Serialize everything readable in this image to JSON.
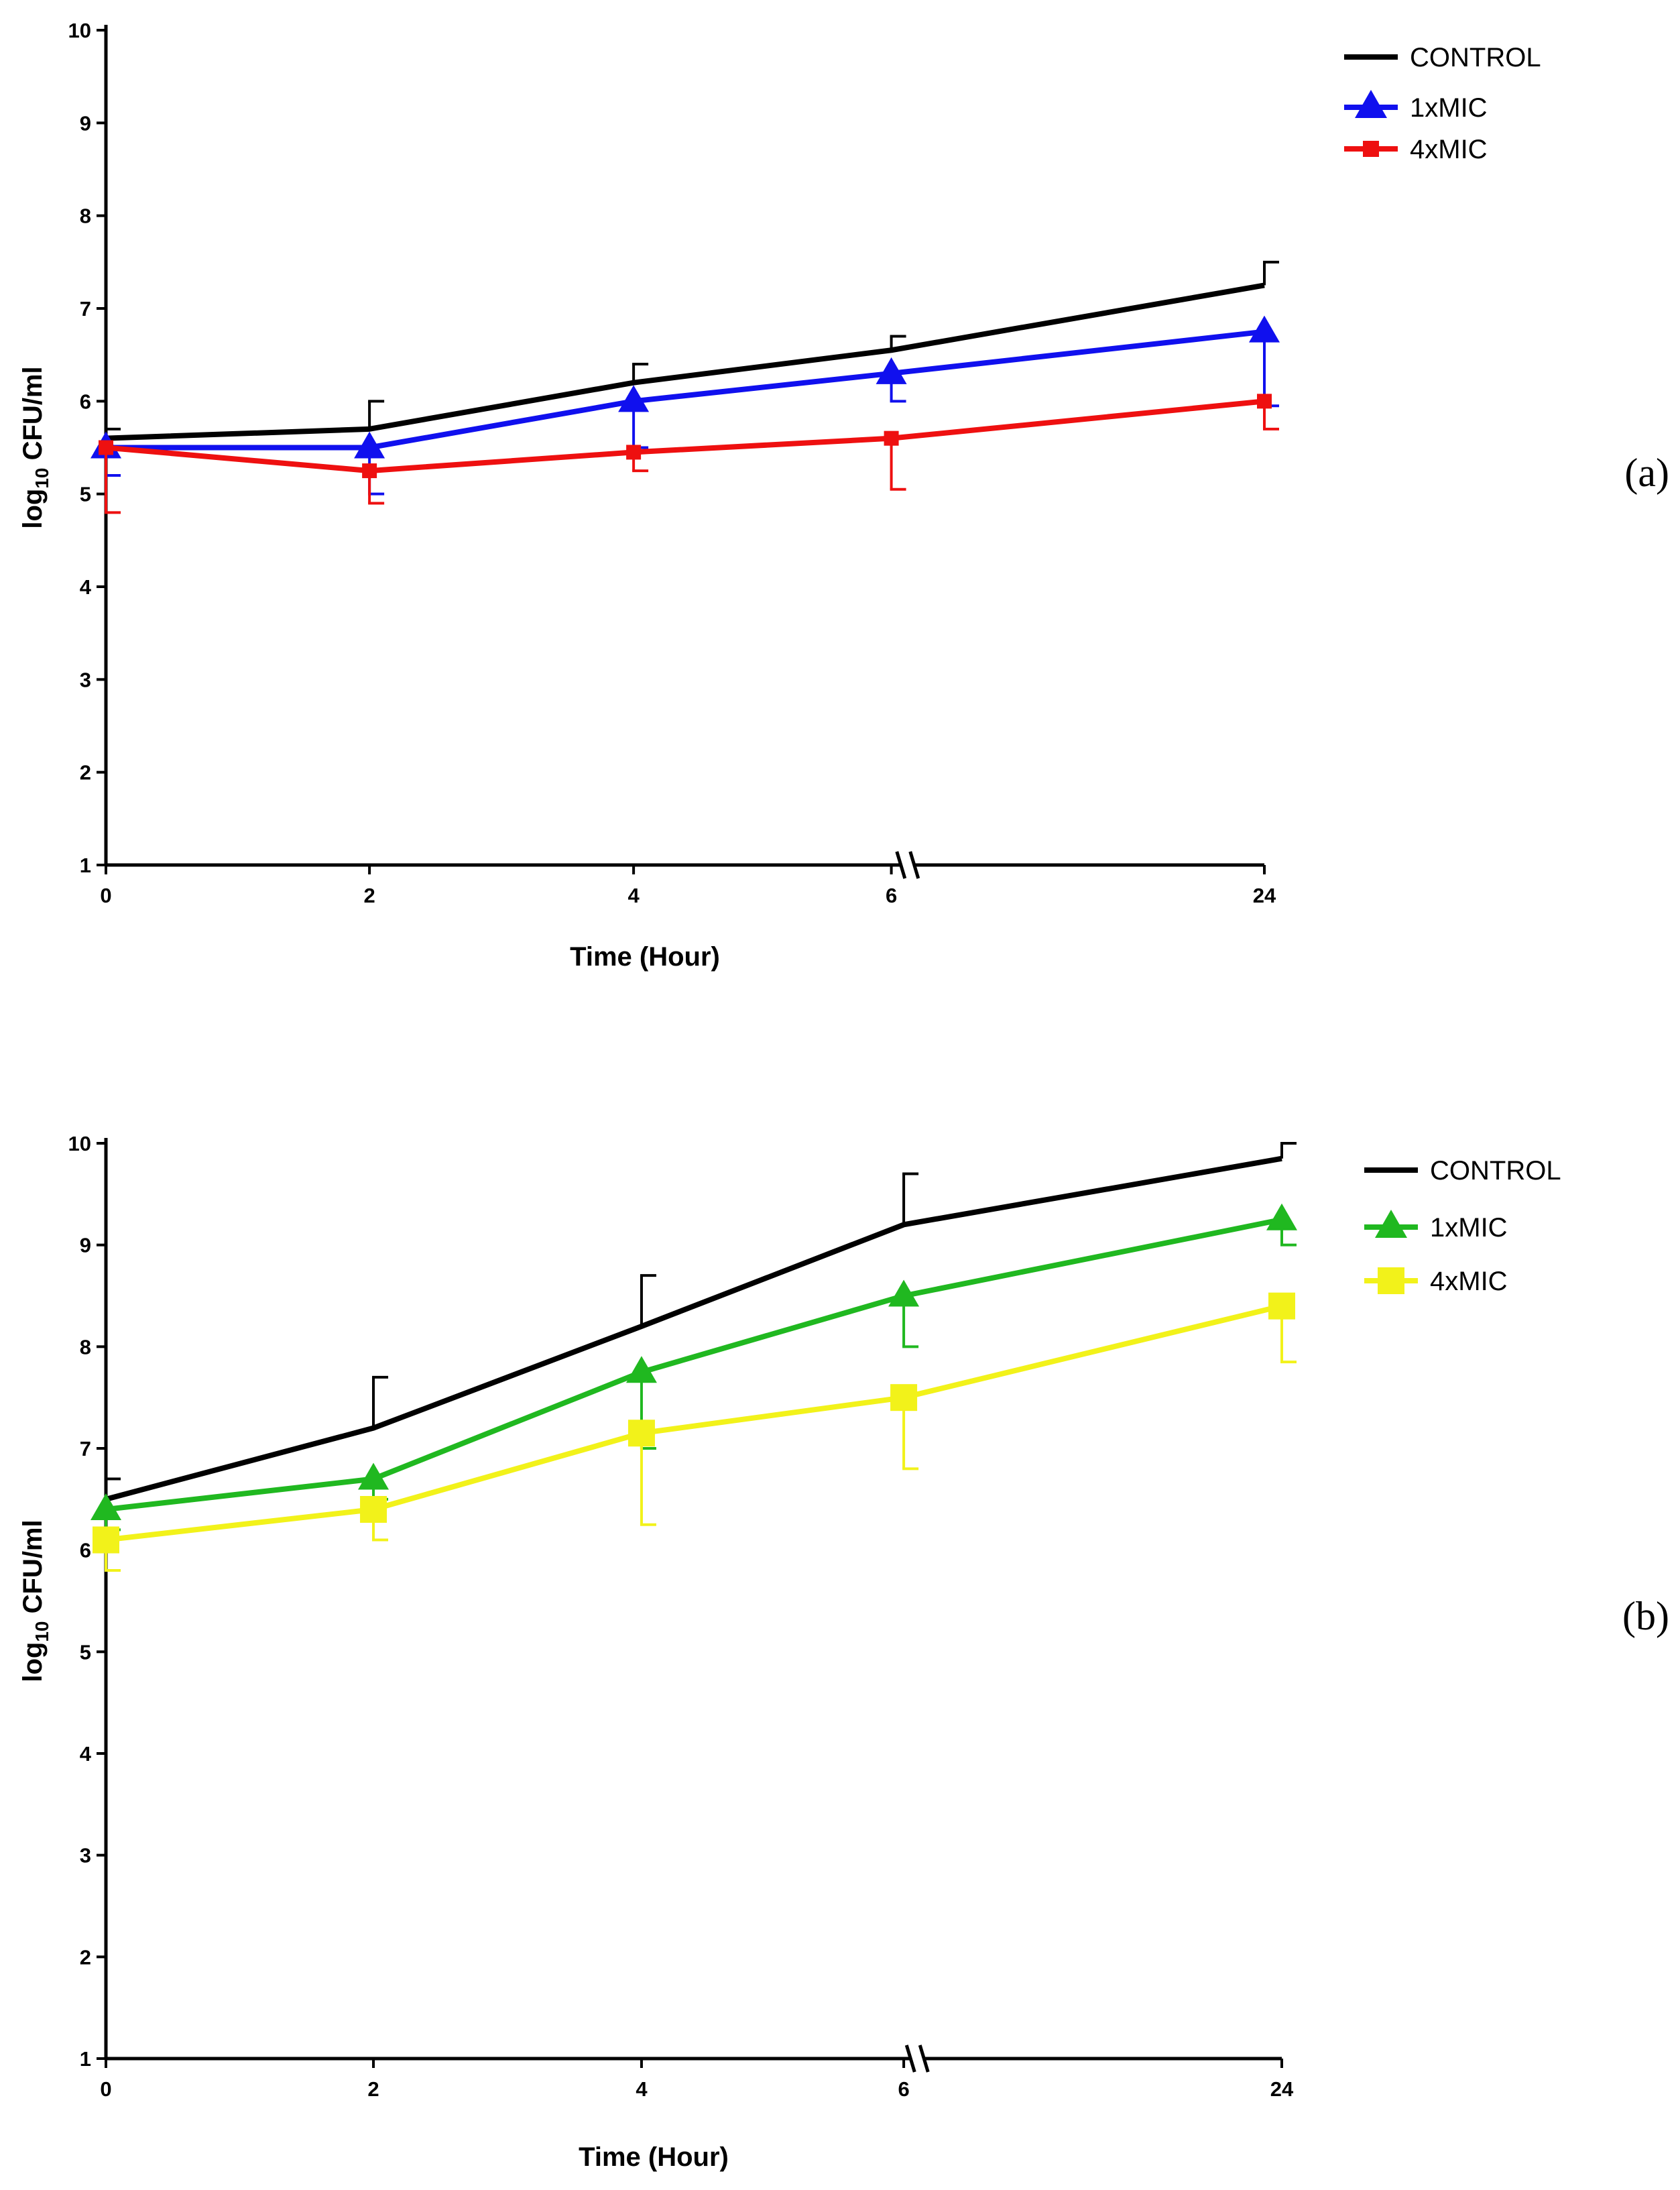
{
  "chart_data": [
    {
      "type": "line",
      "panel_label": "(a)",
      "xlabel": "Time (Hour)",
      "ylabel_main": "log",
      "ylabel_sub": "10",
      "ylabel_rest": " CFU/ml",
      "x": [
        0,
        2,
        4,
        6,
        24
      ],
      "x_tick_labels": [
        "0",
        "2",
        "4",
        "6",
        "24"
      ],
      "axis_break": "between 6 and 24",
      "ylim": [
        1,
        10
      ],
      "y_ticks": [
        "1",
        "2",
        "3",
        "4",
        "5",
        "6",
        "7",
        "8",
        "9",
        "10"
      ],
      "grid": false,
      "legend_position": "top-right",
      "series": [
        {
          "name": "CONTROL",
          "color": "#000000",
          "marker": "none",
          "values": [
            5.6,
            5.7,
            6.2,
            6.55,
            7.25
          ],
          "error": [
            0.1,
            0.3,
            0.2,
            0.15,
            0.25
          ],
          "error_dir": "up"
        },
        {
          "name": "1xMIC",
          "color": "#1010ee",
          "marker": "triangle",
          "values": [
            5.5,
            5.5,
            6.0,
            6.3,
            6.75
          ],
          "error": [
            0.3,
            0.5,
            0.5,
            0.3,
            0.8
          ],
          "error_dir": "down"
        },
        {
          "name": "4xMIC",
          "color": "#ee1010",
          "marker": "square",
          "values": [
            5.5,
            5.25,
            5.45,
            5.6,
            6.0
          ],
          "error": [
            0.7,
            0.35,
            0.2,
            0.55,
            0.3
          ],
          "error_dir": "down"
        }
      ]
    },
    {
      "type": "line",
      "panel_label": "(b)",
      "xlabel": "Time (Hour)",
      "ylabel_main": "log",
      "ylabel_sub": "10",
      "ylabel_rest": " CFU/ml",
      "x": [
        0,
        2,
        4,
        6,
        24
      ],
      "x_tick_labels": [
        "0",
        "2",
        "4",
        "6",
        "24"
      ],
      "axis_break": "between 6 and 24",
      "ylim": [
        1,
        10
      ],
      "y_ticks": [
        "1",
        "2",
        "3",
        "4",
        "5",
        "6",
        "7",
        "8",
        "9",
        "10"
      ],
      "grid": false,
      "legend_position": "top-right",
      "series": [
        {
          "name": "CONTROL",
          "color": "#000000",
          "marker": "none",
          "values": [
            6.5,
            7.2,
            8.2,
            9.2,
            9.85
          ],
          "error": [
            0.2,
            0.5,
            0.5,
            0.5,
            0.15
          ],
          "error_dir": "up"
        },
        {
          "name": "1xMIC",
          "color": "#20b820",
          "marker": "triangle",
          "values": [
            6.4,
            6.7,
            7.75,
            8.5,
            9.25
          ],
          "error": [
            0.2,
            0.2,
            0.75,
            0.5,
            0.25
          ],
          "error_dir": "down"
        },
        {
          "name": "4xMIC",
          "color": "#f2f21a",
          "marker": "square",
          "values": [
            6.1,
            6.4,
            7.15,
            7.5,
            8.4
          ],
          "error": [
            0.3,
            0.3,
            0.9,
            0.7,
            0.55
          ],
          "error_dir": "down"
        }
      ]
    }
  ]
}
